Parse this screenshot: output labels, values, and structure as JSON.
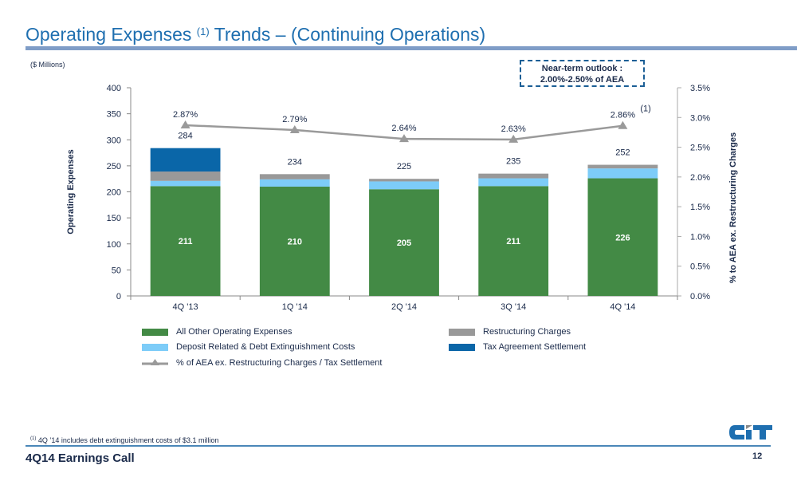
{
  "slide": {
    "title_main": "Operating Expenses",
    "title_sup": "(1)",
    "title_rest": "Trends – (Continuing Operations)",
    "units": "($ Millions)",
    "outlook_line1": "Near-term outlook :",
    "outlook_line2": "2.00%-2.50% of AEA",
    "footnote_marker": "(1)",
    "footnote_text": "4Q ’14 includes debt extinguishment costs of $3.1 million",
    "event": "4Q14 Earnings Call",
    "page_number": "12",
    "logo": "CIT"
  },
  "colors": {
    "title": "#1f6fb0",
    "all_other": "#438a45",
    "deposit": "#7dccf8",
    "restructuring": "#999999",
    "tax": "#0a66a8",
    "line": "#9a9a9a"
  },
  "chart_data": {
    "type": "bar",
    "stacked": true,
    "categories": [
      "4Q '13",
      "1Q '14",
      "2Q '14",
      "3Q '14",
      "4Q '14"
    ],
    "series": [
      {
        "name": "All Other Operating Expenses",
        "values": [
          211,
          210,
          205,
          211,
          226
        ],
        "color_key": "all_other"
      },
      {
        "name": "Deposit Related &  Debt Extinguishment Costs",
        "values": [
          10,
          14,
          15,
          15,
          19
        ],
        "color_key": "deposit"
      },
      {
        "name": "Restructuring Charges",
        "values": [
          18,
          10,
          5,
          9,
          7
        ],
        "color_key": "restructuring"
      },
      {
        "name": "Tax Agreement Settlement",
        "values": [
          45,
          0,
          0,
          0,
          0
        ],
        "color_key": "tax"
      }
    ],
    "totals": [
      284,
      234,
      225,
      235,
      252
    ],
    "total_labels": [
      "284",
      "234",
      "225",
      "235",
      "252"
    ],
    "base_labels": [
      "211",
      "210",
      "205",
      "211",
      "226"
    ],
    "line_series": {
      "name": "% of AEA ex. Restructuring Charges / Tax Settlement",
      "values": [
        2.87,
        2.79,
        2.64,
        2.63,
        2.86
      ],
      "labels": [
        "2.87%",
        "2.79%",
        "2.64%",
        "2.63%",
        "2.86%"
      ],
      "label_notes": [
        "",
        "",
        "",
        "",
        "(1)"
      ],
      "axis": "right"
    },
    "ylabel": "Operating Expenses",
    "y2label": "% to AEA ex. Restructuring Charges",
    "ylim": [
      0,
      400
    ],
    "yticks": [
      "0",
      "50",
      "100",
      "150",
      "200",
      "250",
      "300",
      "350",
      "400"
    ],
    "y2lim": [
      0,
      3.5
    ],
    "y2ticks": [
      "0.0%",
      "0.5%",
      "1.0%",
      "1.5%",
      "2.0%",
      "2.5%",
      "3.0%",
      "3.5%"
    ],
    "grid": false,
    "legend_position": "bottom",
    "legend": [
      "All Other Operating Expenses",
      "Restructuring Charges",
      "Deposit Related &  Debt Extinguishment Costs",
      "Tax Agreement Settlement",
      "% of AEA ex. Restructuring Charges / Tax Settlement"
    ]
  }
}
